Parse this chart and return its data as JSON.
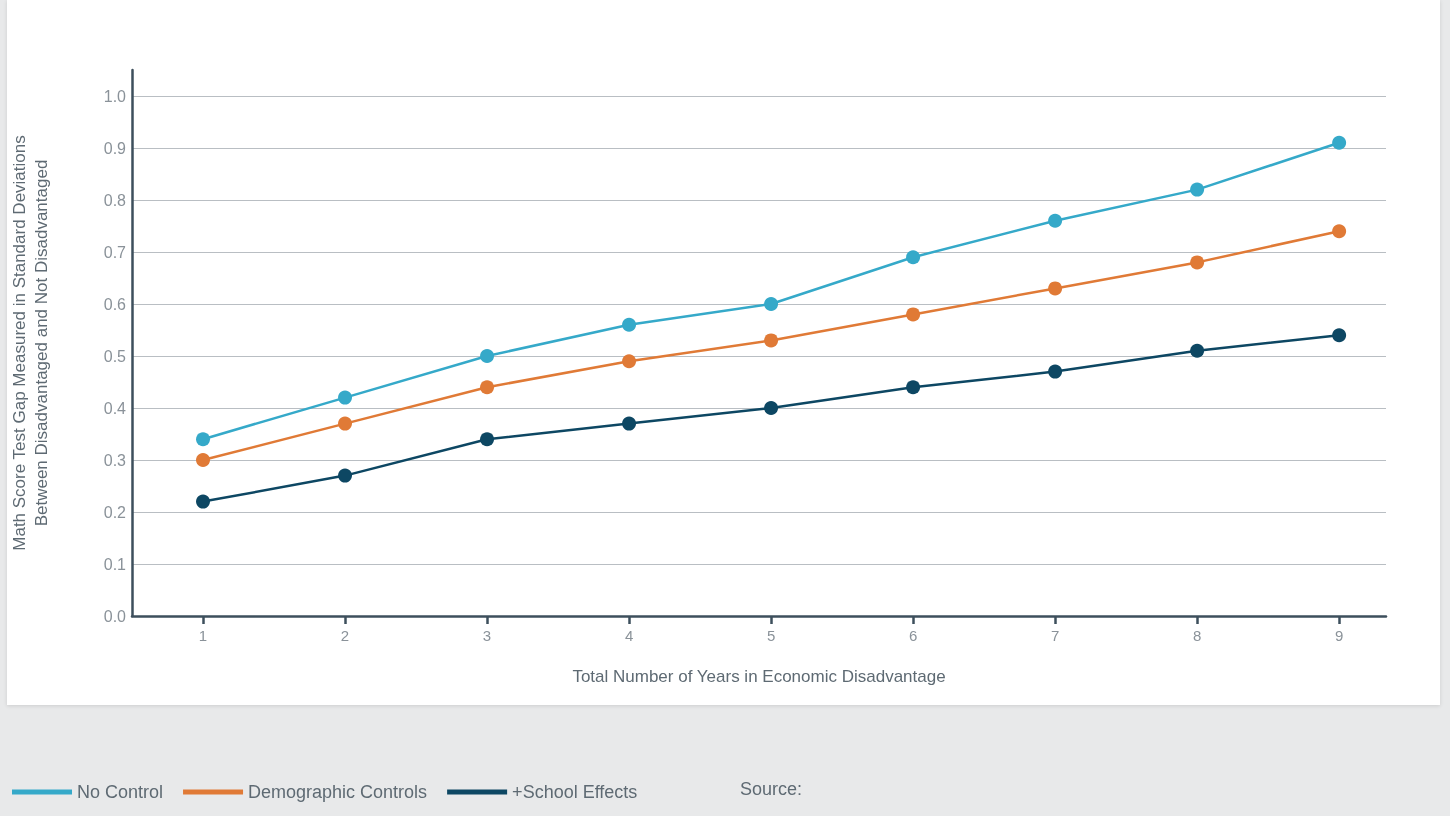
{
  "chart_data": {
    "type": "line",
    "xlabel": "Total Number of Years in Economic Disadvantage",
    "ylabel": "Math Score Test Gap Measured in Standard Deviations\nBetween Disadvantaged and Not Disadvantaged",
    "x": [
      1,
      2,
      3,
      4,
      5,
      6,
      7,
      8,
      9
    ],
    "series": [
      {
        "name": "No Control",
        "color": "#35a9c9",
        "values": [
          0.34,
          0.42,
          0.5,
          0.56,
          0.6,
          0.69,
          0.76,
          0.82,
          0.91
        ]
      },
      {
        "name": "Demographic Controls",
        "color": "#e07a36",
        "values": [
          0.3,
          0.37,
          0.44,
          0.49,
          0.53,
          0.58,
          0.63,
          0.68,
          0.74
        ]
      },
      {
        "name": "+School Effects",
        "color": "#0d4763",
        "values": [
          0.22,
          0.27,
          0.34,
          0.37,
          0.4,
          0.44,
          0.47,
          0.51,
          0.54
        ]
      }
    ],
    "xlim": [
      0.5,
      9.33
    ],
    "xticks": [
      1,
      2,
      3,
      4,
      5,
      6,
      7,
      8,
      9
    ],
    "ylim": [
      0,
      1.05
    ],
    "yticks": [
      {
        "value": 0,
        "label": "0.0"
      },
      0.1,
      0.2,
      0.3,
      0.4,
      0.5,
      0.6,
      0.7,
      0.8,
      0.9,
      {
        "value": 1,
        "label": "1.0"
      }
    ],
    "grid": "y",
    "legend": "bottom left",
    "marker": "circle",
    "line_style": "solid",
    "annotations": [
      "Source:"
    ]
  }
}
